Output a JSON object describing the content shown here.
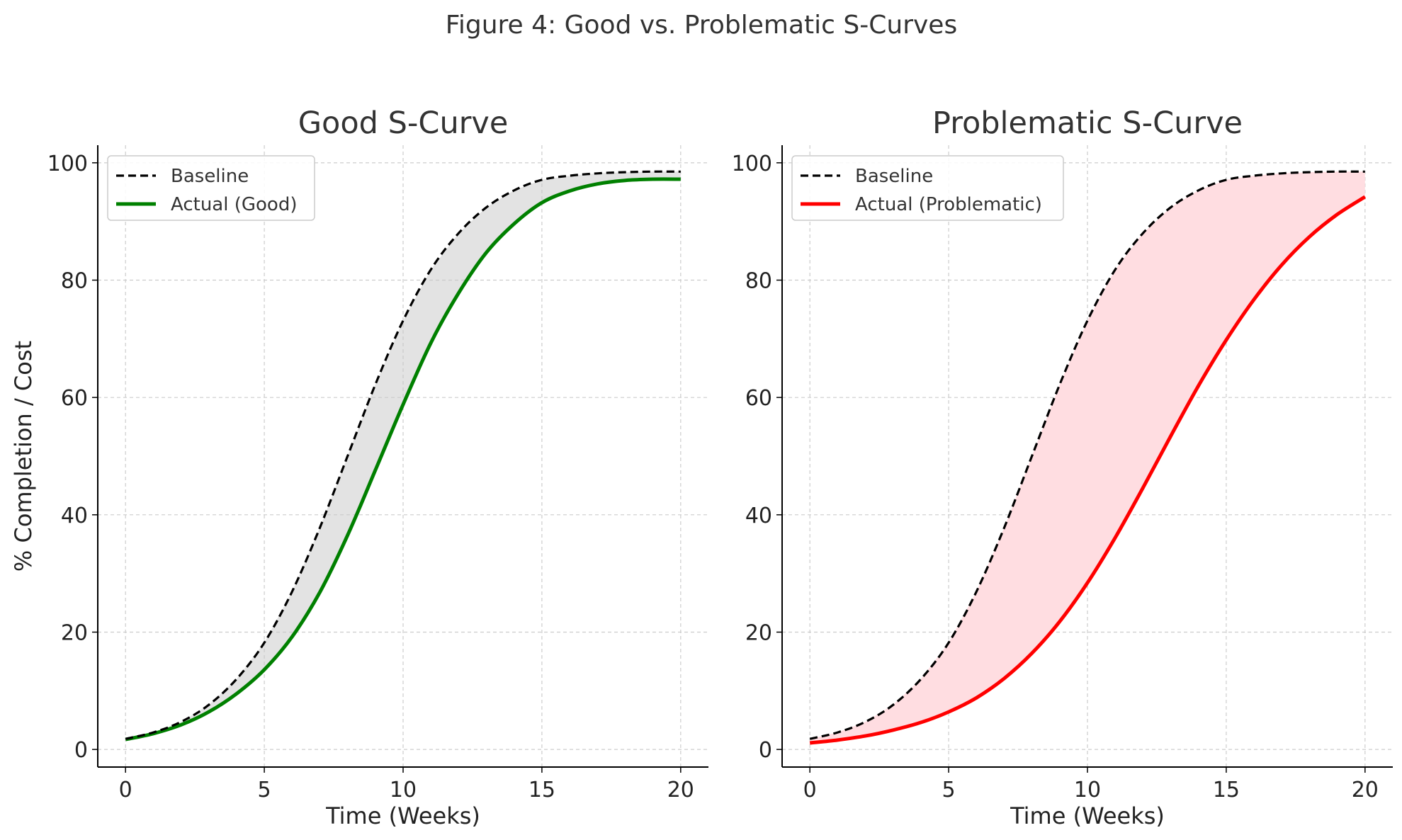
{
  "figure_title": "Figure 4: Good vs. Problematic S-Curves",
  "colors": {
    "text": "#333333",
    "baseline": "#000000",
    "good": "#008000",
    "problematic": "#ff0000",
    "fill_good": "#c8c8c8",
    "fill_problematic": "#ffdde1",
    "grid": "#cccccc",
    "axis": "#000000"
  },
  "chart_data": [
    {
      "type": "line",
      "title": "Good S-Curve",
      "xlabel": "Time (Weeks)",
      "ylabel": "% Completion / Cost",
      "xlim": [
        -1,
        21
      ],
      "ylim": [
        -3,
        103
      ],
      "xticks": [
        0,
        5,
        10,
        15,
        20
      ],
      "yticks": [
        0,
        20,
        40,
        60,
        80,
        100
      ],
      "grid": true,
      "legend_position": "top-left",
      "x": [
        0,
        1,
        2,
        3,
        4,
        5,
        6,
        7,
        8,
        9,
        10,
        11,
        12,
        13,
        14,
        15,
        16,
        17,
        18,
        19,
        20
      ],
      "series": [
        {
          "name": "Baseline",
          "style": "dashed",
          "color": "#000000",
          "values": [
            1.8,
            2.9,
            4.7,
            7.6,
            12.0,
            18.2,
            26.9,
            37.8,
            50.0,
            62.2,
            73.1,
            81.8,
            88.0,
            92.4,
            95.3,
            97.1,
            97.8,
            98.2,
            98.4,
            98.5,
            98.5
          ]
        },
        {
          "name": "Actual (Good)",
          "style": "solid",
          "color": "#008000",
          "values": [
            1.7,
            2.7,
            4.2,
            6.4,
            9.5,
            13.6,
            19.2,
            26.8,
            36.5,
            47.6,
            58.8,
            69.3,
            77.8,
            84.7,
            89.6,
            93.2,
            95.2,
            96.4,
            97.0,
            97.2,
            97.2
          ]
        }
      ]
    },
    {
      "type": "line",
      "title": "Problematic S-Curve",
      "xlabel": "Time (Weeks)",
      "ylabel": "",
      "xlim": [
        -1,
        21
      ],
      "ylim": [
        -3,
        103
      ],
      "xticks": [
        0,
        5,
        10,
        15,
        20
      ],
      "yticks": [
        0,
        20,
        40,
        60,
        80,
        100
      ],
      "grid": true,
      "legend_position": "top-left",
      "x": [
        0,
        1,
        2,
        3,
        4,
        5,
        6,
        7,
        8,
        9,
        10,
        11,
        12,
        13,
        14,
        15,
        16,
        17,
        18,
        19,
        20
      ],
      "series": [
        {
          "name": "Baseline",
          "style": "dashed",
          "color": "#000000",
          "values": [
            1.8,
            2.9,
            4.7,
            7.6,
            12.0,
            18.2,
            26.9,
            37.8,
            50.0,
            62.2,
            73.1,
            81.8,
            88.0,
            92.4,
            95.3,
            97.1,
            97.8,
            98.2,
            98.4,
            98.5,
            98.5
          ]
        },
        {
          "name": "Actual (Problematic)",
          "style": "solid",
          "color": "#ff0000",
          "values": [
            1.1,
            1.6,
            2.3,
            3.3,
            4.6,
            6.4,
            8.8,
            12.1,
            16.4,
            21.8,
            28.4,
            36.1,
            44.6,
            53.4,
            62.0,
            69.8,
            76.7,
            82.6,
            87.4,
            91.2,
            94.2
          ]
        }
      ]
    }
  ]
}
